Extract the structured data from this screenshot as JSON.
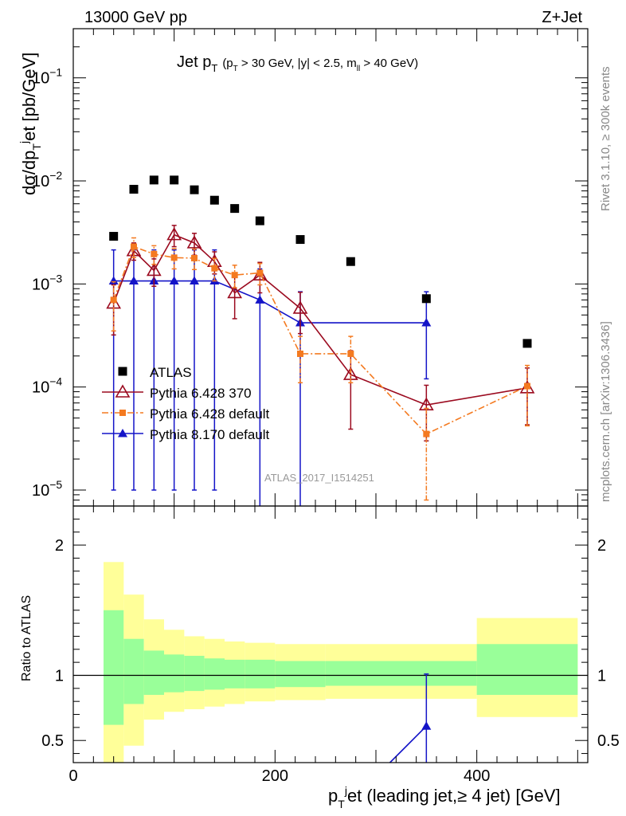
{
  "header": {
    "left": "13000 GeV pp",
    "right": "Z+Jet"
  },
  "side_labels": {
    "rivet": "Rivet 3.1.10, ≥ 300k events",
    "mcplots": "mcplots.cern.ch [arXiv:1306.3436]"
  },
  "watermark": "ATLAS_2017_I1514251",
  "chart_data": [
    {
      "type": "scatter",
      "title": "Jet p_T (p_T > 30 GeV, |y| < 2.5, m_ll > 40 GeV)",
      "title_main": "Jet p",
      "title_main_sub": "T",
      "title_cuts": "(p",
      "title_cuts_sub": "T",
      "title_cuts_rest": " > 30 GeV, |y| < 2.5, m",
      "title_cuts_sub2": "ll",
      "title_cuts_end": " > 40 GeV)",
      "ylabel": "dσ/dp_T^j et [pb/GeV]",
      "ylabel_parts": [
        "dσ/dp",
        "T",
        "j",
        "et [pb/GeV]"
      ],
      "xlim": [
        0,
        510
      ],
      "ylim": [
        7e-06,
        0.3
      ],
      "yscale": "log",
      "y_ticks": [
        {
          "v": 1e-05,
          "label": "10",
          "exp": "−5"
        },
        {
          "v": 0.0001,
          "label": "10",
          "exp": "−4"
        },
        {
          "v": 0.001,
          "label": "10",
          "exp": "−3"
        },
        {
          "v": 0.01,
          "label": "10",
          "exp": "−2"
        },
        {
          "v": 0.1,
          "label": "10",
          "exp": "−1"
        }
      ],
      "legend_position": "lower-left",
      "series": [
        {
          "name": "ATLAS",
          "color": "#000000",
          "marker": "square",
          "x": [
            40,
            60,
            80,
            100,
            120,
            140,
            160,
            185,
            225,
            275,
            350,
            450
          ],
          "y": [
            0.0029,
            0.0083,
            0.0102,
            0.0102,
            0.0082,
            0.0065,
            0.0054,
            0.0041,
            0.0027,
            0.00165,
            0.00072,
            0.000265
          ]
        },
        {
          "name": "Pythia 6.428 370",
          "color": "#9b0a1f",
          "marker": "open-triangle",
          "line": "solid",
          "x": [
            40,
            60,
            80,
            100,
            120,
            140,
            160,
            185,
            225,
            275,
            350,
            450
          ],
          "y": [
            0.00065,
            0.0021,
            0.00135,
            0.003,
            0.0025,
            0.00165,
            0.00082,
            0.00122,
            0.00058,
            0.000132,
            6.7e-05,
            9.8e-05
          ],
          "err_low": [
            0.00033,
            0.0004,
            0.0004,
            0.0007,
            0.0006,
            0.0004,
            0.00036,
            0.0004,
            0.00025,
            9.3e-05,
            3.7e-05,
            5.5e-05
          ],
          "err_high": [
            0.00033,
            0.0004,
            0.0004,
            0.0007,
            0.0006,
            0.0004,
            0.00036,
            0.0004,
            0.00025,
            9.3e-05,
            3.7e-05,
            5.5e-05
          ]
        },
        {
          "name": "Pythia 6.428 default",
          "color": "#f47a20",
          "marker": "square-small",
          "line": "dash-dot",
          "x": [
            40,
            60,
            80,
            100,
            120,
            140,
            160,
            185,
            225,
            275,
            350,
            450
          ],
          "y": [
            0.0007,
            0.0023,
            0.00195,
            0.0018,
            0.00178,
            0.00142,
            0.00122,
            0.00128,
            0.00021,
            0.00021,
            3.5e-05,
            0.000102
          ],
          "err_low": [
            0.00035,
            0.0005,
            0.0004,
            0.0004,
            0.0004,
            0.00035,
            0.0003,
            0.0003,
            0.0001,
            0.0001,
            2.7e-05,
            6e-05
          ],
          "err_high": [
            0.00035,
            0.0005,
            0.0004,
            0.0004,
            0.0004,
            0.00035,
            0.0003,
            0.0003,
            0.0001,
            0.0001,
            2.7e-05,
            6e-05
          ]
        },
        {
          "name": "Pythia 8.170 default",
          "color": "#1414c8",
          "marker": "triangle",
          "line": "solid",
          "x": [
            40,
            60,
            80,
            100,
            120,
            140,
            185,
            225,
            350
          ],
          "y": [
            0.00107,
            0.00107,
            0.00107,
            0.00107,
            0.00107,
            0.00107,
            0.0007,
            0.00042,
            0.00042
          ],
          "err_low": [
            0.00106,
            0.00106,
            0.00106,
            0.00106,
            0.00106,
            0.00106,
            0.000695,
            0.000418,
            0.0003
          ],
          "err_high": [
            0.00107,
            0.00107,
            0.00107,
            0.00107,
            0.00107,
            0.00107,
            0.0007,
            0.00042,
            0.00042
          ]
        }
      ]
    },
    {
      "type": "line",
      "ylabel": "Ratio to ATLAS",
      "xlabel": "p_T^j et (leading jet,≥ 4 jet) [GeV]",
      "xlabel_parts": [
        "p",
        "T",
        "j",
        "et (leading jet,≥ 4 jet) [GeV]"
      ],
      "xlim": [
        0,
        510
      ],
      "ylim": [
        0.33,
        2.3
      ],
      "x_ticks": [
        0,
        200,
        400
      ],
      "y_ticks": [
        0.5,
        1,
        2
      ],
      "reference_line": 1,
      "bands": {
        "edges": [
          30,
          50,
          70,
          90,
          110,
          130,
          150,
          170,
          200,
          250,
          300,
          400,
          500
        ],
        "yellow_low": [
          0.33,
          0.46,
          0.66,
          0.72,
          0.74,
          0.76,
          0.78,
          0.8,
          0.81,
          0.82,
          0.82,
          0.68
        ],
        "yellow_high": [
          1.87,
          1.62,
          1.43,
          1.35,
          1.3,
          1.28,
          1.26,
          1.25,
          1.24,
          1.24,
          1.24,
          1.44
        ],
        "green_low": [
          0.62,
          0.78,
          0.85,
          0.87,
          0.88,
          0.89,
          0.9,
          0.9,
          0.91,
          0.92,
          0.92,
          0.85
        ],
        "green_high": [
          1.5,
          1.28,
          1.19,
          1.16,
          1.15,
          1.13,
          1.12,
          1.12,
          1.11,
          1.11,
          1.11,
          1.24
        ]
      },
      "series": [
        {
          "name": "Pythia 8.170 default",
          "color": "#1414c8",
          "x": [
            310,
            350
          ],
          "y": [
            0.3,
            0.61
          ],
          "points": [
            {
              "x": 350,
              "y": 0.61,
              "err_low": 0.3,
              "err_high": 1.01
            }
          ]
        }
      ]
    }
  ]
}
